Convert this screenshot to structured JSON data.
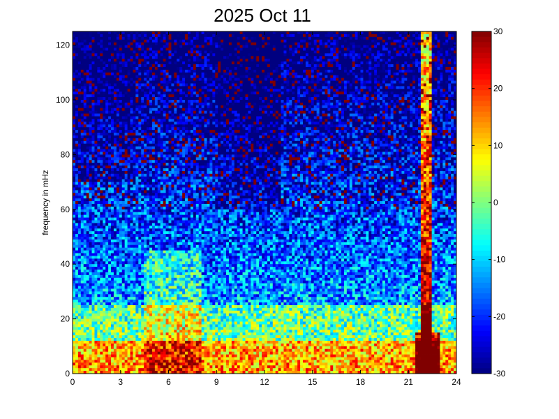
{
  "chart_data": {
    "type": "heatmap",
    "title": "2025 Oct 11",
    "xlabel": "",
    "ylabel": "frequency in mHz",
    "xlim": [
      0,
      24
    ],
    "ylim": [
      0,
      125
    ],
    "x_ticks": [
      0,
      3,
      6,
      9,
      12,
      15,
      18,
      21,
      24
    ],
    "y_ticks": [
      0,
      20,
      40,
      60,
      80,
      100,
      120
    ],
    "colorbar": {
      "range": [
        -30,
        30
      ],
      "ticks": [
        30,
        20,
        10,
        0,
        -10,
        -20,
        -30
      ],
      "colormap": "jet"
    },
    "grid": false,
    "features": [
      {
        "x_start": 4.5,
        "x_end": 8,
        "y_max": 45,
        "level": 25
      },
      {
        "x_start": 21.7,
        "x_end": 22.4,
        "y_max": 125,
        "level": 30
      }
    ]
  }
}
